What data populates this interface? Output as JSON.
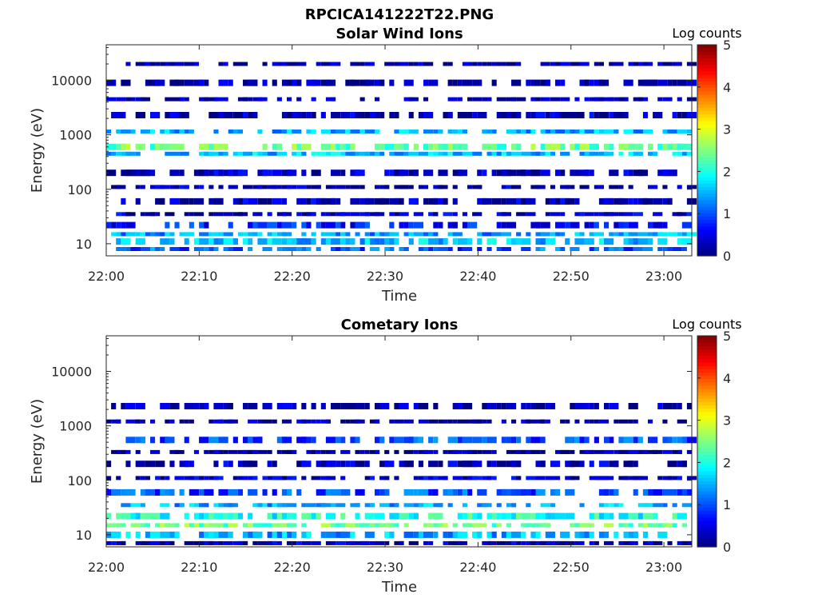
{
  "figure": {
    "title": "RPCICA141222T22.PNG"
  },
  "chart_data": [
    {
      "type": "heatmap",
      "title": "Solar Wind Ions",
      "xlabel": "Time",
      "ylabel": "Energy (eV)",
      "yscale": "log",
      "ylim": [
        6,
        45000
      ],
      "xlim": [
        "22:00",
        "23:03"
      ],
      "x_ticks": [
        "22:00",
        "22:10",
        "22:20",
        "22:30",
        "22:40",
        "22:50",
        "23:00"
      ],
      "y_ticks": [
        "10",
        "100",
        "1000",
        "10000"
      ],
      "y_tick_values": [
        10,
        100,
        1000,
        10000
      ],
      "colorbar": {
        "label": "Log counts",
        "min": 0,
        "max": 5,
        "ticks": [
          "0",
          "1",
          "2",
          "3",
          "4",
          "5"
        ],
        "colormap": "jet"
      },
      "bands": [
        {
          "energy": 8,
          "level": 1.1
        },
        {
          "energy": 11,
          "level": 1.6
        },
        {
          "energy": 15,
          "level": 1.4
        },
        {
          "energy": 22,
          "level": 0.7
        },
        {
          "energy": 35,
          "level": 0.4
        },
        {
          "energy": 60,
          "level": 0.3
        },
        {
          "energy": 110,
          "level": 0.3
        },
        {
          "energy": 200,
          "level": 0.3
        },
        {
          "energy": 450,
          "level": 1.6
        },
        {
          "energy": 600,
          "level": 2.4
        },
        {
          "energy": 1150,
          "level": 1.5
        },
        {
          "energy": 2300,
          "level": 0.3
        },
        {
          "energy": 4500,
          "level": 0.2
        },
        {
          "energy": 9000,
          "level": 0.2
        },
        {
          "energy": 20000,
          "level": 0.2
        }
      ],
      "grid": false
    },
    {
      "type": "heatmap",
      "title": "Cometary Ions",
      "xlabel": "Time",
      "ylabel": "Energy (eV)",
      "yscale": "log",
      "ylim": [
        6,
        45000
      ],
      "xlim": [
        "22:00",
        "23:03"
      ],
      "x_ticks": [
        "22:00",
        "22:10",
        "22:20",
        "22:30",
        "22:40",
        "22:50",
        "23:00"
      ],
      "y_ticks": [
        "10",
        "100",
        "1000",
        "10000"
      ],
      "y_tick_values": [
        10,
        100,
        1000,
        10000
      ],
      "colorbar": {
        "label": "Log counts",
        "min": 0,
        "max": 5,
        "ticks": [
          "0",
          "1",
          "2",
          "3",
          "4",
          "5"
        ],
        "colormap": "jet"
      },
      "bands": [
        {
          "energy": 7,
          "level": 0.3
        },
        {
          "energy": 10,
          "level": 1.5
        },
        {
          "energy": 15,
          "level": 2.4
        },
        {
          "energy": 22,
          "level": 2.0
        },
        {
          "energy": 35,
          "level": 1.5
        },
        {
          "energy": 60,
          "level": 1.0
        },
        {
          "energy": 110,
          "level": 0.4
        },
        {
          "energy": 200,
          "level": 0.3
        },
        {
          "energy": 330,
          "level": 0.2
        },
        {
          "energy": 550,
          "level": 1.0
        },
        {
          "energy": 1200,
          "level": 0.2
        },
        {
          "energy": 2300,
          "level": 0.2
        }
      ],
      "grid": false
    }
  ]
}
